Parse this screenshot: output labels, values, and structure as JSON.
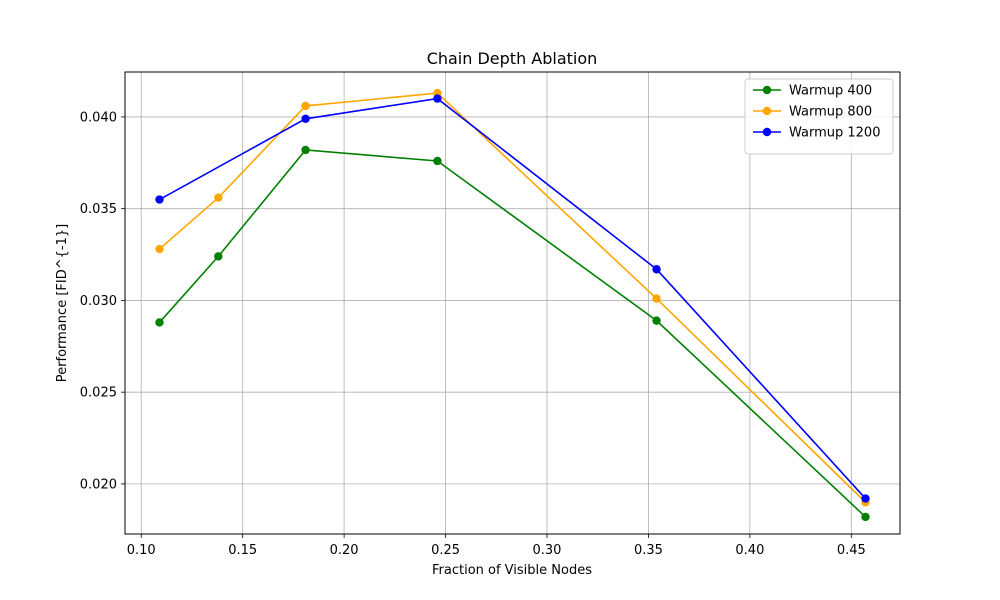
{
  "chart_data": {
    "type": "line",
    "title": "Chain Depth Ablation",
    "xlabel": "Fraction of Visible Nodes",
    "ylabel": "Performance [FID^{-1}]",
    "xlim": [
      0.092,
      0.474
    ],
    "ylim": [
      0.01727,
      0.04245
    ],
    "xticks": [
      0.1,
      0.15,
      0.2,
      0.25,
      0.3,
      0.35,
      0.4,
      0.45
    ],
    "xtick_labels": [
      "0.10",
      "0.15",
      "0.20",
      "0.25",
      "0.30",
      "0.35",
      "0.40",
      "0.45"
    ],
    "yticks": [
      0.02,
      0.025,
      0.03,
      0.035,
      0.04
    ],
    "ytick_labels": [
      "0.020",
      "0.025",
      "0.030",
      "0.035",
      "0.040"
    ],
    "grid": true,
    "legend_position": "top-right",
    "series": [
      {
        "name": "Warmup 400",
        "color": "#008000",
        "points": [
          [
            0.109,
            0.0288
          ],
          [
            0.138,
            0.0324
          ],
          [
            0.181,
            0.0382
          ],
          [
            0.246,
            0.0376
          ],
          [
            0.354,
            0.0289
          ],
          [
            0.457,
            0.0182
          ]
        ]
      },
      {
        "name": "Warmup 800",
        "color": "#FFA500",
        "points": [
          [
            0.109,
            0.0328
          ],
          [
            0.138,
            0.0356
          ],
          [
            0.181,
            0.0406
          ],
          [
            0.246,
            0.0413
          ],
          [
            0.354,
            0.0301
          ],
          [
            0.457,
            0.019
          ]
        ]
      },
      {
        "name": "Warmup 1200",
        "color": "#0000FF",
        "points": [
          [
            0.109,
            0.0355
          ],
          [
            0.181,
            0.0399
          ],
          [
            0.246,
            0.041
          ],
          [
            0.354,
            0.0317
          ],
          [
            0.457,
            0.0192
          ]
        ]
      }
    ]
  }
}
